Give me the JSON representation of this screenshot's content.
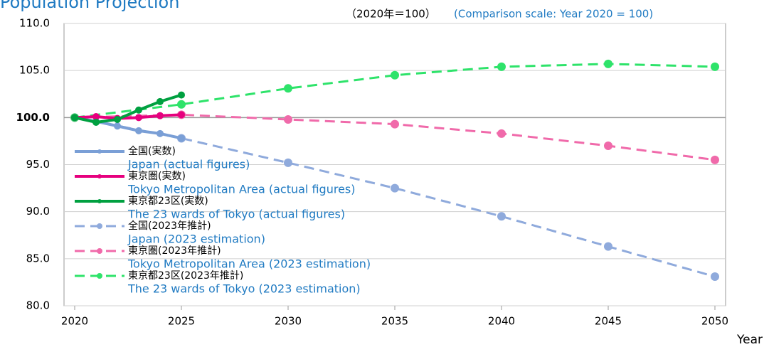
{
  "chart_data": {
    "type": "line",
    "title": "Population Projection",
    "subtitle": "（2020年＝100）",
    "subtitle_en": "(Comparison scale: Year 2020 = 100)",
    "x_label": "Year",
    "xlim": [
      2019.5,
      2050.5
    ],
    "xticks": [
      2020,
      2025,
      2030,
      2035,
      2040,
      2045,
      2050
    ],
    "ylim": [
      80,
      110
    ],
    "yticks": [
      {
        "value": 80,
        "label": "80.0"
      },
      {
        "value": 85,
        "label": "85.0"
      },
      {
        "value": 90,
        "label": "90.0"
      },
      {
        "value": 95,
        "label": "95.0"
      },
      {
        "value": 100,
        "label": "100.0"
      },
      {
        "value": 105,
        "label": "105.0"
      },
      {
        "value": 110,
        "label": "110.0"
      }
    ],
    "grid": true,
    "legend": "left",
    "series": [
      {
        "name": "全国(実数)",
        "name_en": "Japan (actual figures)",
        "color": "#7a9fd6",
        "dashed": false,
        "x": [
          2020,
          2021,
          2022,
          2023,
          2024,
          2025
        ],
        "values": [
          100.0,
          99.6,
          99.1,
          98.6,
          98.3,
          97.8
        ]
      },
      {
        "name": "東京圏(実数)",
        "name_en": "Tokyo Metropolitan Area (actual figures)",
        "color": "#e6007e",
        "dashed": false,
        "x": [
          2020,
          2021,
          2022,
          2023,
          2024,
          2025
        ],
        "values": [
          100.0,
          100.1,
          99.9,
          100.0,
          100.2,
          100.3
        ]
      },
      {
        "name": "東京都23区(実数)",
        "name_en": "The 23 wards of Tokyo (actual figures)",
        "color": "#00a040",
        "dashed": false,
        "x": [
          2020,
          2021,
          2022,
          2023,
          2024,
          2025
        ],
        "values": [
          100.0,
          99.5,
          99.8,
          100.8,
          101.7,
          102.4
        ]
      },
      {
        "name": "全国(2023年推計)",
        "name_en": "Japan (2023 estimation)",
        "color": "#8faadc",
        "dashed": true,
        "x": [
          2020,
          2025,
          2030,
          2035,
          2040,
          2045,
          2050
        ],
        "values": [
          100.0,
          97.8,
          95.2,
          92.5,
          89.5,
          86.3,
          83.1
        ]
      },
      {
        "name": "東京圏(2023年推計)",
        "name_en": "Tokyo Metropolitan Area (2023 estimation)",
        "color": "#f06aaa",
        "dashed": true,
        "x": [
          2020,
          2025,
          2030,
          2035,
          2040,
          2045,
          2050
        ],
        "values": [
          100.0,
          100.3,
          99.8,
          99.3,
          98.3,
          97.0,
          95.5
        ]
      },
      {
        "name": "東京都23区(2023年推計)",
        "name_en": "The 23 wards of Tokyo (2023 estimation)",
        "color": "#2ee36a",
        "dashed": true,
        "x": [
          2020,
          2025,
          2030,
          2035,
          2040,
          2045,
          2050
        ],
        "values": [
          100.0,
          101.4,
          103.1,
          104.5,
          105.4,
          105.7,
          105.4
        ]
      }
    ]
  }
}
